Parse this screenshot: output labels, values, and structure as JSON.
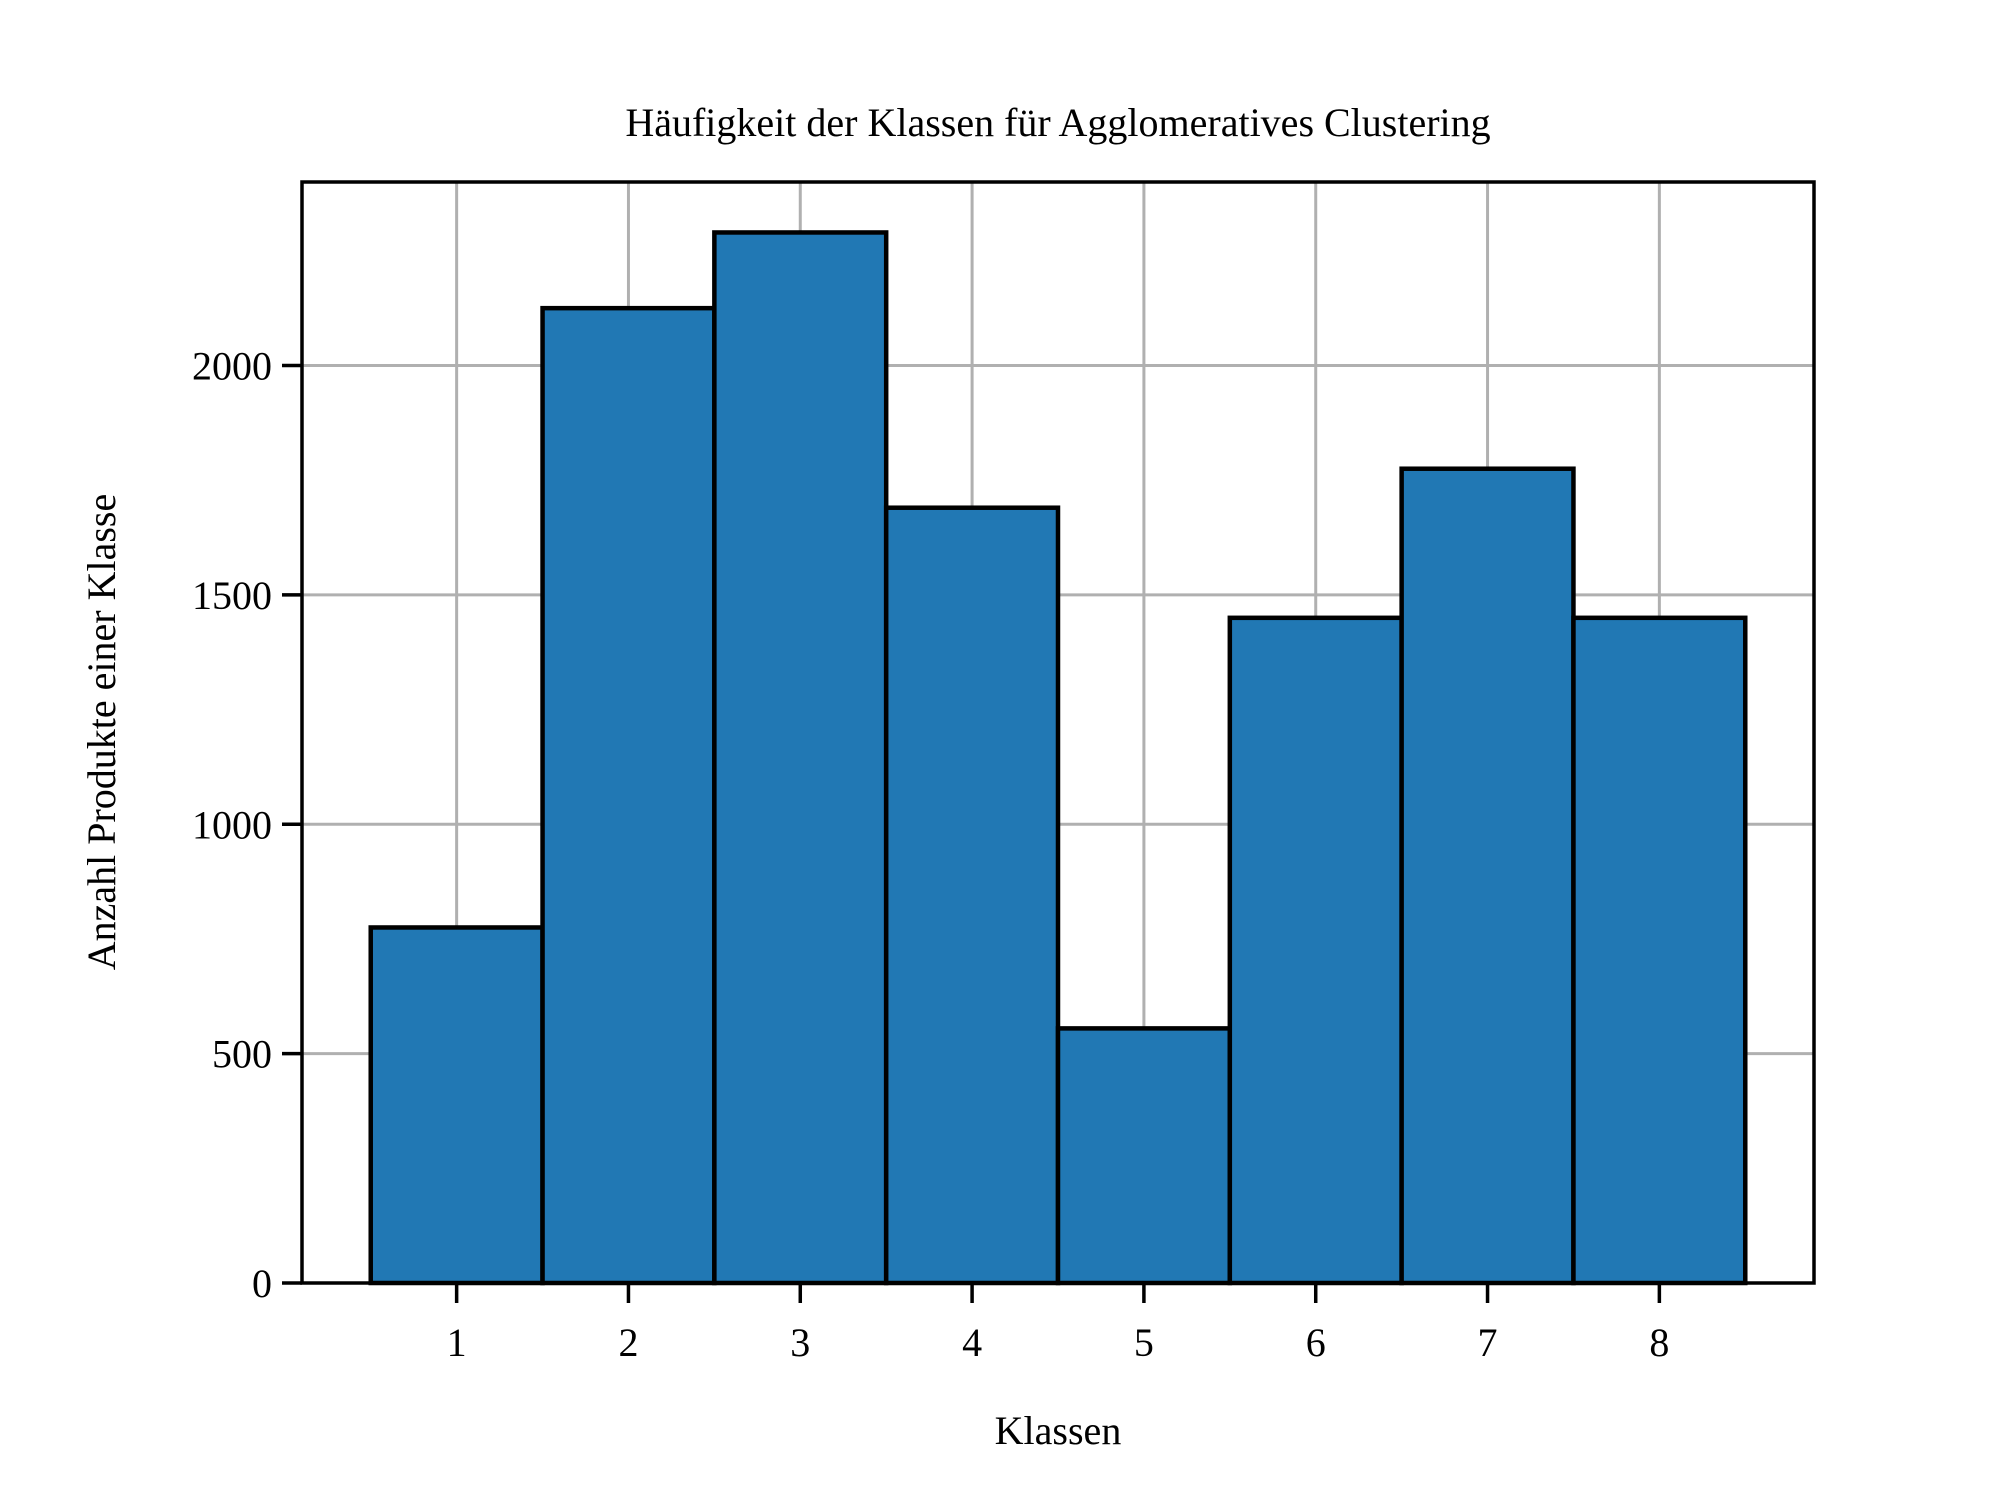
{
  "chart_data": {
    "type": "bar",
    "title": "Häufigkeit der Klassen für Agglomeratives Clustering",
    "xlabel": "Klassen",
    "ylabel": "Anzahl Produkte einer Klasse",
    "categories": [
      "1",
      "2",
      "3",
      "4",
      "5",
      "6",
      "7",
      "8"
    ],
    "values": [
      775,
      2125,
      2290,
      1690,
      555,
      1450,
      1775,
      1450
    ],
    "xlim": [
      0.1,
      8.9
    ],
    "ylim": [
      0,
      2400
    ],
    "yticks": [
      0,
      500,
      1000,
      1500,
      2000
    ],
    "ytick_labels": [
      "0",
      "500",
      "1000",
      "1500",
      "2000"
    ],
    "grid": true,
    "colors": {
      "bar_fill": "#2178b4",
      "bar_edge": "#000000",
      "grid": "#b0b0b0",
      "axes": "#000000"
    }
  }
}
